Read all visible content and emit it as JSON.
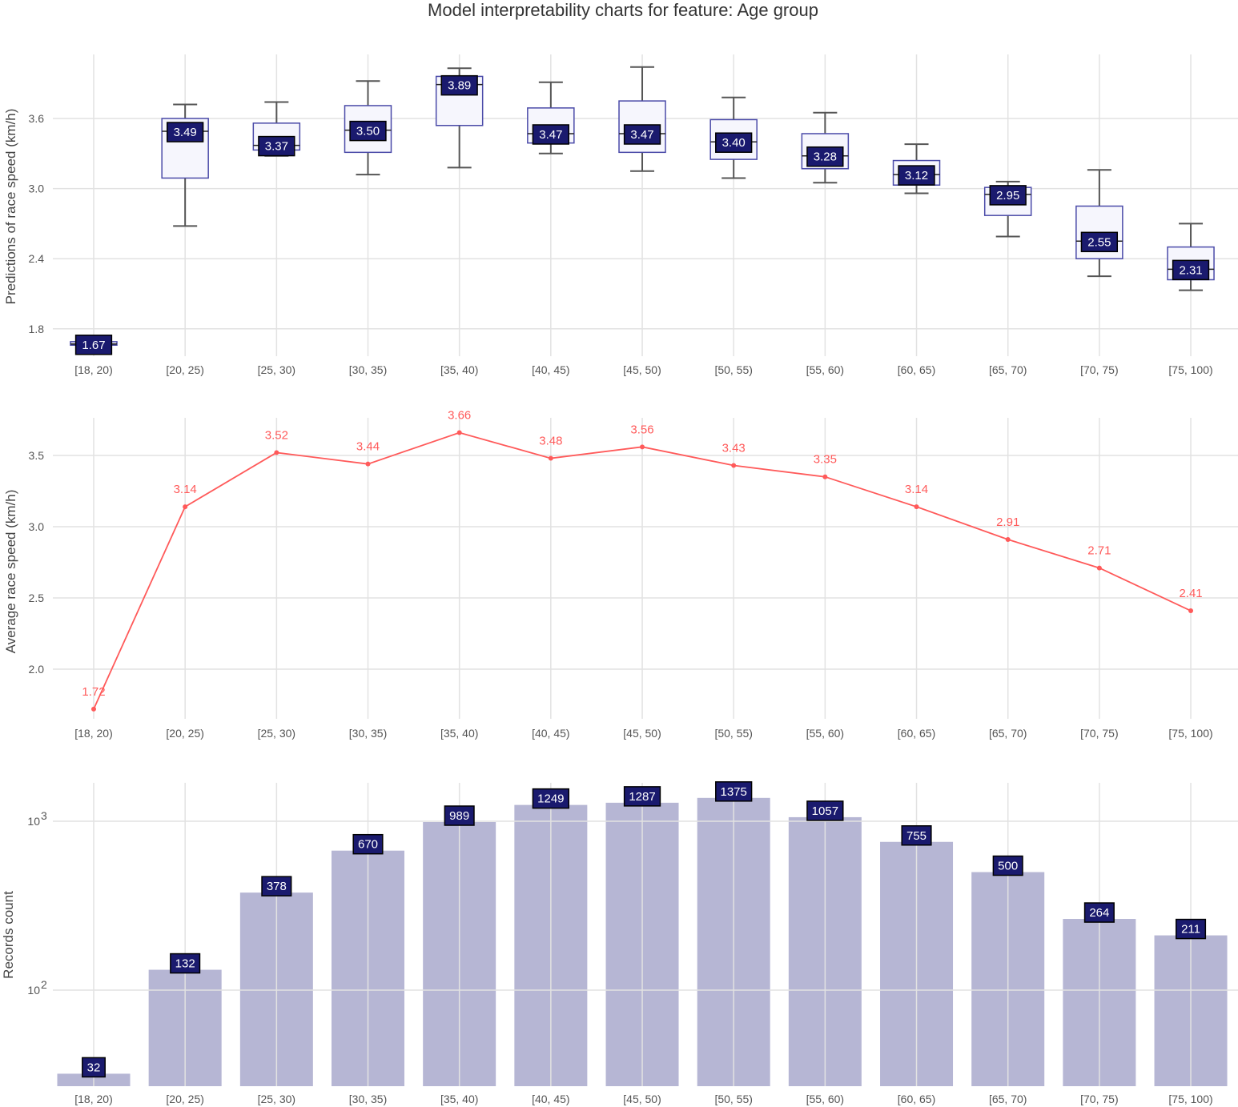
{
  "title": "Model interpretability charts for feature: Age group",
  "chart_data": [
    {
      "type": "box",
      "ylabel": "Predictions of race speed (km/h)",
      "yticks": [
        1.8,
        2.4,
        3.0,
        3.6
      ],
      "ytick_labels": [
        "1.8",
        "2.4",
        "3.0",
        "3.6"
      ],
      "categories": [
        "[18, 20)",
        "[20, 25)",
        "[25, 30)",
        "[30, 35)",
        "[35, 40)",
        "[40, 45)",
        "[45, 50)",
        "[50, 55)",
        "[55, 60)",
        "[60, 65)",
        "[65, 70)",
        "[70, 75)",
        "[75, 100)"
      ],
      "median_labels": [
        "1.67",
        "3.49",
        "3.37",
        "3.50",
        "3.89",
        "3.47",
        "3.47",
        "3.40",
        "3.28",
        "3.12",
        "2.95",
        "2.55",
        "2.31"
      ],
      "medians": [
        1.67,
        3.49,
        3.37,
        3.5,
        3.89,
        3.47,
        3.47,
        3.4,
        3.28,
        3.12,
        2.95,
        2.55,
        2.31
      ],
      "q1": [
        1.66,
        3.09,
        3.33,
        3.31,
        3.54,
        3.39,
        3.31,
        3.25,
        3.17,
        3.03,
        2.77,
        2.4,
        2.22
      ],
      "q3": [
        1.69,
        3.6,
        3.56,
        3.71,
        3.96,
        3.69,
        3.75,
        3.59,
        3.47,
        3.24,
        3.01,
        2.85,
        2.5
      ],
      "whisker_low": [
        1.66,
        2.68,
        3.28,
        3.12,
        3.18,
        3.3,
        3.15,
        3.09,
        3.05,
        2.96,
        2.59,
        2.25,
        2.13
      ],
      "whisker_high": [
        1.69,
        3.72,
        3.74,
        3.92,
        4.03,
        3.91,
        4.04,
        3.78,
        3.65,
        3.38,
        3.06,
        3.16,
        2.7
      ],
      "ylim": [
        1.6,
        4.1
      ]
    },
    {
      "type": "line",
      "ylabel": "Average race speed (km/h)",
      "yticks": [
        2.0,
        2.5,
        3.0,
        3.5
      ],
      "ytick_labels": [
        "2.0",
        "2.5",
        "3.0",
        "3.5"
      ],
      "categories": [
        "[18, 20)",
        "[20, 25)",
        "[25, 30)",
        "[30, 35)",
        "[35, 40)",
        "[40, 45)",
        "[45, 50)",
        "[50, 55)",
        "[55, 60)",
        "[60, 65)",
        "[65, 70)",
        "[70, 75)",
        "[75, 100)"
      ],
      "values": [
        1.72,
        3.14,
        3.52,
        3.44,
        3.66,
        3.48,
        3.56,
        3.43,
        3.35,
        3.14,
        2.91,
        2.71,
        2.41
      ],
      "value_labels": [
        "1.72",
        "3.14",
        "3.52",
        "3.44",
        "3.66",
        "3.48",
        "3.56",
        "3.43",
        "3.35",
        "3.14",
        "2.91",
        "2.71",
        "2.41"
      ],
      "color": "#ff5a5a",
      "ylim": [
        1.6,
        3.8
      ]
    },
    {
      "type": "bar",
      "yscale": "log",
      "ylabel": "Records count",
      "yticks": [
        100,
        1000
      ],
      "ytick_base": [
        "10",
        "10"
      ],
      "ytick_exp": [
        "2",
        "3"
      ],
      "categories": [
        "[18, 20)",
        "[20, 25)",
        "[25, 30)",
        "[30, 35)",
        "[35, 40)",
        "[40, 45)",
        "[45, 50)",
        "[50, 55)",
        "[55, 60)",
        "[60, 65)",
        "[65, 70)",
        "[70, 75)",
        "[75, 100)"
      ],
      "values": [
        32,
        132,
        378,
        670,
        989,
        1249,
        1287,
        1375,
        1057,
        755,
        500,
        264,
        211
      ],
      "value_labels": [
        "32",
        "132",
        "378",
        "670",
        "989",
        "1249",
        "1287",
        "1375",
        "1057",
        "755",
        "500",
        "264",
        "211"
      ],
      "color": "#b6b6d4",
      "ylim": [
        27,
        1660
      ]
    }
  ],
  "colors": {
    "label_bg": "#1a1a6e",
    "box_fill": "#f6f6fd",
    "box_stroke": "#4a4aa8",
    "whisker": "#555555"
  }
}
